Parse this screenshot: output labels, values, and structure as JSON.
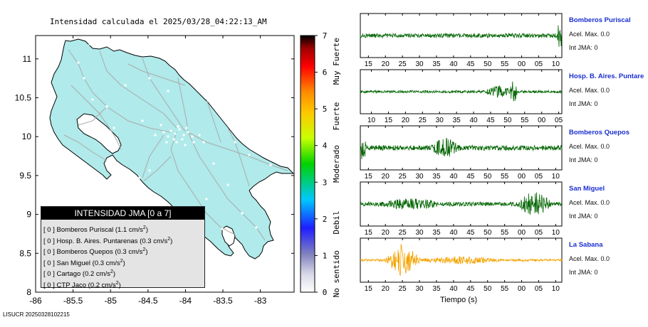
{
  "map": {
    "title": "Intensidad calculada el 2025/03/28_04:22:13_AM",
    "x_ticks": [
      "-86",
      "-85.5",
      "-85",
      "-84.5",
      "-84",
      "-83.5",
      "-83"
    ],
    "y_ticks": [
      "11",
      "10.5",
      "10",
      "9.5",
      "9",
      "8.5",
      "8"
    ],
    "xlim": [
      -86,
      -82.55
    ],
    "ylim": [
      8,
      11.3
    ],
    "land_color": "#b0eaea",
    "road_color": "#aaaaaa",
    "footer_code": "LISUCR 20250328102215"
  },
  "legend": {
    "header": "INTENSIDAD JMA [0 a 7]",
    "rows": [
      {
        "bracket": "[ 0 ]",
        "text": "Bomberos Puriscal (1.1 cm/s",
        "sup": "2",
        "close": ")"
      },
      {
        "bracket": "[ 0 ]",
        "text": "Hosp. B. Aires. Puntarenas (0.3 cm/s",
        "sup": "2",
        "close": ")"
      },
      {
        "bracket": "[ 0 ]",
        "text": "Bomberos Quepos (0.3 cm/s",
        "sup": "2",
        "close": ")"
      },
      {
        "bracket": "[ 0 ]",
        "text": "San Miguel (0.3 cm/s",
        "sup": "2",
        "close": ")"
      },
      {
        "bracket": "[ 0 ]",
        "text": "Cartago (0.2 cm/s",
        "sup": "2",
        "close": ")"
      },
      {
        "bracket": "[ 0 ]",
        "text": "CTP Jaco (0.2 cm/s",
        "sup": "2",
        "close": ")"
      }
    ]
  },
  "colorbar": {
    "ticks": [
      "0",
      "1",
      "2",
      "3",
      "4",
      "5",
      "6",
      "7"
    ],
    "labels": [
      "No sentido",
      "Debil",
      "Moderado",
      "Fuerte",
      "Muy Fuerte"
    ],
    "colors": [
      "#ffffff",
      "#1e1eff",
      "#00c8ff",
      "#00d200",
      "#ffff00",
      "#ff8c00",
      "#ff0000",
      "#000000"
    ]
  },
  "chart_data": {
    "type": "line",
    "xlabel": "Tiempo (s)",
    "series": [
      {
        "name": "Bomberos Puriscal",
        "accel_label": "Acel. Max. 0.0",
        "int_label": "Int JMA: 0",
        "color": "#006400",
        "x_ticks": [
          "15",
          "20",
          "25",
          "30",
          "35",
          "40",
          "45",
          "50",
          "55",
          "00",
          "05",
          "10"
        ],
        "first_tick_frac": 0.04,
        "tick_spacing_frac": 0.0845
      },
      {
        "name": "Hosp. B. Aires. Puntare",
        "accel_label": "Acel. Max. 0.0",
        "int_label": "Int JMA: 0",
        "color": "#006400",
        "x_ticks": [
          "10",
          "15",
          "20",
          "25",
          "30",
          "35",
          "40",
          "45",
          "50",
          "55",
          "00",
          "05"
        ],
        "first_tick_frac": 0.055,
        "tick_spacing_frac": 0.0845
      },
      {
        "name": "Bomberos Quepos",
        "accel_label": "Acel. Max. 0.0",
        "int_label": "Int JMA: 0",
        "color": "#006400",
        "x_ticks": [
          "15",
          "20",
          "25",
          "30",
          "35",
          "40",
          "45",
          "50",
          "55",
          "00",
          "05",
          "10"
        ],
        "first_tick_frac": 0.04,
        "tick_spacing_frac": 0.0845
      },
      {
        "name": "San Miguel",
        "accel_label": "Acel. Max. 0.0",
        "int_label": "Int JMA: 0",
        "color": "#006400",
        "x_ticks": [
          "15",
          "20",
          "25",
          "30",
          "35",
          "40",
          "45",
          "50",
          "55",
          "00",
          "05",
          "10"
        ],
        "first_tick_frac": 0.04,
        "tick_spacing_frac": 0.0845
      },
      {
        "name": "La Sabana",
        "accel_label": "Acel. Max. 0.0",
        "int_label": "Int JMA: 0",
        "color": "#f4a300",
        "x_ticks": [
          "15",
          "20",
          "25",
          "30",
          "35",
          "40",
          "45",
          "50",
          "55",
          "00",
          "05",
          "10"
        ],
        "first_tick_frac": 0.04,
        "tick_spacing_frac": 0.0845
      }
    ]
  }
}
